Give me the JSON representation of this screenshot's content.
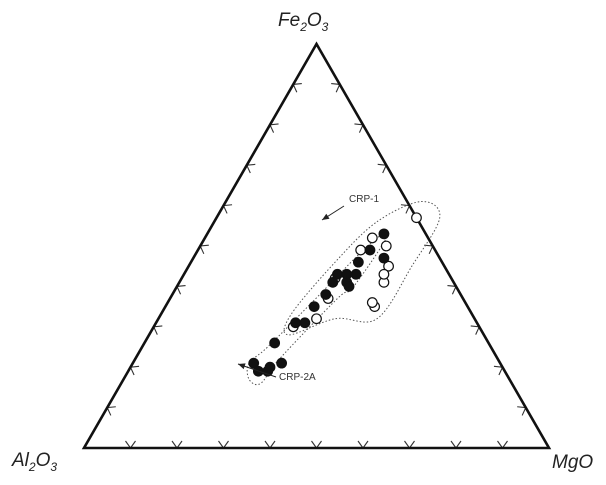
{
  "chart_data": {
    "type": "scatter",
    "subtype": "ternary",
    "vertices": {
      "top": {
        "pre": "Fe",
        "sub": "2",
        "mid": "O",
        "sub2": "3"
      },
      "left": {
        "pre": "Al",
        "sub": "2",
        "mid": "O",
        "sub2": "3"
      },
      "right": {
        "pre": "MgO",
        "sub": "",
        "mid": "",
        "sub2": ""
      }
    },
    "tick_interval": 10,
    "annotations": [
      {
        "label": "CRP-1"
      },
      {
        "label": "CRP-2A"
      }
    ],
    "series": [
      {
        "marker": "open-circle",
        "points": [
          {
            "MgO": 0.43,
            "Fe2O3": 0.57
          },
          {
            "MgO": 0.36,
            "Fe2O3": 0.52
          },
          {
            "MgO": 0.4,
            "Fe2O3": 0.5
          },
          {
            "MgO": 0.43,
            "Fe2O3": 0.45
          },
          {
            "MgO": 0.44,
            "Fe2O3": 0.41
          },
          {
            "MgO": 0.45,
            "Fe2O3": 0.35
          },
          {
            "MgO": 0.44,
            "Fe2O3": 0.36
          },
          {
            "MgO": 0.43,
            "Fe2O3": 0.43
          },
          {
            "MgO": 0.35,
            "Fe2O3": 0.49
          },
          {
            "MgO": 0.33,
            "Fe2O3": 0.42
          },
          {
            "MgO": 0.34,
            "Fe2O3": 0.37
          },
          {
            "MgO": 0.3,
            "Fe2O3": 0.3
          },
          {
            "MgO": 0.34,
            "Fe2O3": 0.32
          }
        ]
      },
      {
        "marker": "filled-circle",
        "points": [
          {
            "MgO": 0.38,
            "Fe2O3": 0.53
          },
          {
            "MgO": 0.37,
            "Fe2O3": 0.49
          },
          {
            "MgO": 0.41,
            "Fe2O3": 0.47
          },
          {
            "MgO": 0.36,
            "Fe2O3": 0.46
          },
          {
            "MgO": 0.37,
            "Fe2O3": 0.43
          },
          {
            "MgO": 0.35,
            "Fe2O3": 0.43
          },
          {
            "MgO": 0.33,
            "Fe2O3": 0.43
          },
          {
            "MgO": 0.33,
            "Fe2O3": 0.41
          },
          {
            "MgO": 0.36,
            "Fe2O3": 0.41
          },
          {
            "MgO": 0.37,
            "Fe2O3": 0.4
          },
          {
            "MgO": 0.33,
            "Fe2O3": 0.38
          },
          {
            "MgO": 0.32,
            "Fe2O3": 0.35
          },
          {
            "MgO": 0.32,
            "Fe2O3": 0.31
          },
          {
            "MgO": 0.3,
            "Fe2O3": 0.31
          },
          {
            "MgO": 0.28,
            "Fe2O3": 0.26
          },
          {
            "MgO": 0.26,
            "Fe2O3": 0.21
          },
          {
            "MgO": 0.28,
            "Fe2O3": 0.19
          },
          {
            "MgO": 0.32,
            "Fe2O3": 0.21
          },
          {
            "MgO": 0.3,
            "Fe2O3": 0.19
          },
          {
            "MgO": 0.3,
            "Fe2O3": 0.2
          }
        ]
      }
    ],
    "field_outlines": [
      {
        "label_ref": "CRP-1",
        "style": "dotted",
        "vertices": [
          {
            "MgO": 0.35,
            "Fe2O3": 0.56
          },
          {
            "MgO": 0.42,
            "Fe2O3": 0.61
          },
          {
            "MgO": 0.48,
            "Fe2O3": 0.57
          },
          {
            "MgO": 0.48,
            "Fe2O3": 0.45
          },
          {
            "MgO": 0.47,
            "Fe2O3": 0.32
          },
          {
            "MgO": 0.38,
            "Fe2O3": 0.32
          },
          {
            "MgO": 0.3,
            "Fe2O3": 0.28
          },
          {
            "MgO": 0.28,
            "Fe2O3": 0.33
          },
          {
            "MgO": 0.31,
            "Fe2O3": 0.46
          }
        ]
      },
      {
        "label_ref": "CRP-2A",
        "style": "dotted",
        "vertices": [
          {
            "MgO": 0.39,
            "Fe2O3": 0.53
          },
          {
            "MgO": 0.38,
            "Fe2O3": 0.4
          },
          {
            "MgO": 0.36,
            "Fe2O3": 0.37
          },
          {
            "MgO": 0.31,
            "Fe2O3": 0.22
          },
          {
            "MgO": 0.3,
            "Fe2O3": 0.16
          },
          {
            "MgO": 0.27,
            "Fe2O3": 0.17
          },
          {
            "MgO": 0.25,
            "Fe2O3": 0.21
          },
          {
            "MgO": 0.27,
            "Fe2O3": 0.25
          },
          {
            "MgO": 0.31,
            "Fe2O3": 0.36
          },
          {
            "MgO": 0.36,
            "Fe2O3": 0.5
          }
        ]
      }
    ]
  }
}
